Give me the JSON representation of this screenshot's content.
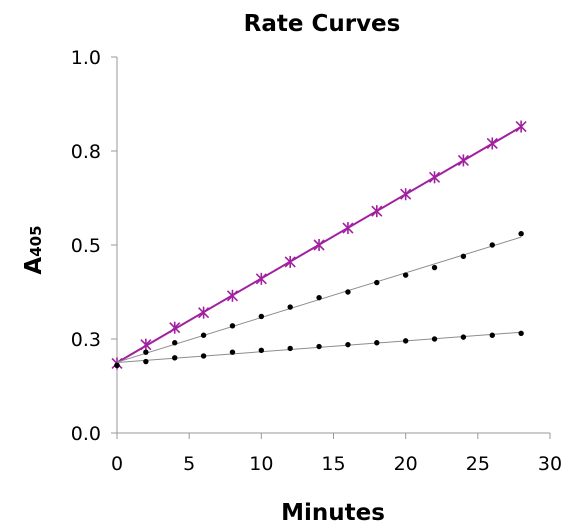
{
  "chart_data": {
    "type": "scatter",
    "title": "Rate Curves",
    "xlabel": "Minutes",
    "ylabel": "A",
    "ylabel_subscript": "405",
    "xlim": [
      0,
      30
    ],
    "ylim": [
      0.0,
      1.0
    ],
    "x_ticks": [
      0,
      5,
      10,
      15,
      20,
      25,
      30
    ],
    "x_tick_labels": [
      "0",
      "5",
      "10",
      "15",
      "20",
      "25",
      "30"
    ],
    "y_ticks": [
      0.0,
      0.25,
      0.5,
      0.75,
      1.0
    ],
    "y_tick_labels": [
      "0.0",
      "0.3",
      "0.5",
      "0.8",
      "1.0"
    ],
    "grid": false,
    "legend": false,
    "x": [
      0,
      2,
      4,
      6,
      8,
      10,
      12,
      14,
      16,
      18,
      20,
      22,
      24,
      26,
      28
    ],
    "series": [
      {
        "marker": "x-star",
        "color": "#a020a0",
        "trendline": true,
        "values": [
          0.185,
          0.235,
          0.28,
          0.32,
          0.365,
          0.41,
          0.455,
          0.5,
          0.545,
          0.59,
          0.635,
          0.68,
          0.725,
          0.77,
          0.815
        ]
      },
      {
        "marker": "dot",
        "color": "#000000",
        "trendline": true,
        "values": [
          0.18,
          0.215,
          0.24,
          0.26,
          0.285,
          0.31,
          0.335,
          0.36,
          0.375,
          0.4,
          0.42,
          0.44,
          0.47,
          0.5,
          0.53
        ]
      },
      {
        "marker": "dot",
        "color": "#000000",
        "trendline": true,
        "values": [
          0.18,
          0.19,
          0.2,
          0.205,
          0.215,
          0.22,
          0.225,
          0.23,
          0.235,
          0.24,
          0.245,
          0.25,
          0.255,
          0.26,
          0.265
        ]
      }
    ]
  }
}
